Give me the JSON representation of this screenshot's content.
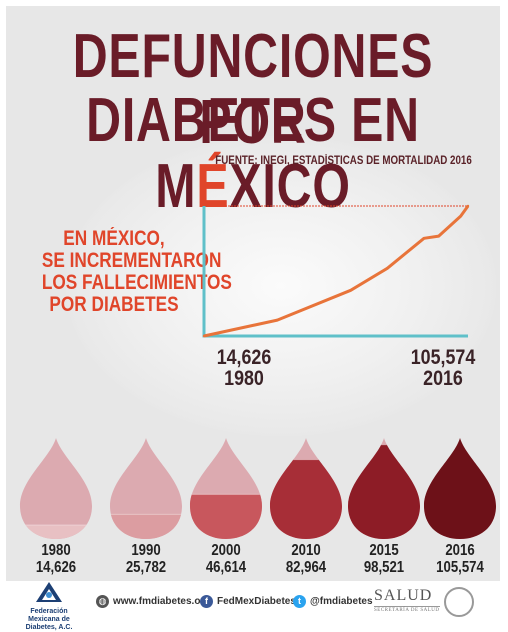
{
  "title": {
    "line1": "DEFUNCIONES POR",
    "line2_before": "DIABETES EN M",
    "line2_accent": "É",
    "line2_after": "XICO"
  },
  "source": "FUENTE: INEGI, ESTADÍSTICAS DE MORTALIDAD 2016",
  "lead_lines": [
    "EN MÉXICO,",
    "SE INCREMENTARON",
    "LOS FALLECIMIENTOS",
    "POR DIABETES"
  ],
  "start_label": {
    "value": "14,626",
    "year": "1980"
  },
  "end_label": {
    "value": "105,574",
    "year": "2016"
  },
  "colors": {
    "title": "#6a1c28",
    "accent": "#e0452a",
    "line": "#e8743a",
    "axis": "#5fc0c9",
    "drop_empty": "#dcaab0",
    "drop_fills": [
      "#e8c0c3",
      "#dc9da1",
      "#c8575d",
      "#a72e37",
      "#8d1c26",
      "#6d1118"
    ]
  },
  "chart_data": [
    {
      "type": "line",
      "title": "",
      "xlabel": "",
      "ylabel": "",
      "x": [
        1980,
        1990,
        2000,
        2005,
        2010,
        2012,
        2015,
        2016
      ],
      "y": [
        14626,
        25782,
        46614,
        62000,
        82964,
        84500,
        98521,
        105574
      ],
      "xlim": [
        1980,
        2016
      ],
      "ylim": [
        14626,
        105574
      ],
      "reference_line": 105574,
      "grid": false
    },
    {
      "type": "bar",
      "categories": [
        "1980",
        "1990",
        "2000",
        "2010",
        "2015",
        "2016"
      ],
      "values": [
        14626,
        25782,
        46614,
        82964,
        98521,
        105574
      ],
      "value_labels": [
        "14,626",
        "25,782",
        "46,614",
        "82,964",
        "98,521",
        "105,574"
      ],
      "ylim": [
        0,
        105574
      ]
    }
  ],
  "footer": {
    "org_name": "Federación Mexicana de Diabetes, A.C.",
    "website": "www.fmdiabetes.org",
    "facebook": "FedMexDiabetes",
    "twitter": "@fmdiabetes",
    "salud": "SALUD",
    "salud_sub": "SECRETARÍA DE SALUD"
  }
}
